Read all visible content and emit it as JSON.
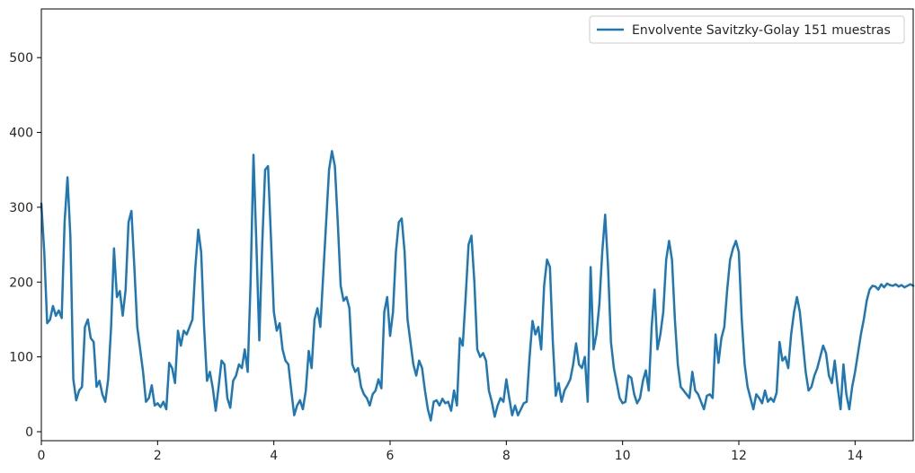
{
  "chart_data": {
    "type": "line",
    "title": "",
    "xlabel": "",
    "ylabel": "",
    "xlim": [
      0,
      15
    ],
    "ylim": [
      -12,
      565
    ],
    "xticks": [
      0,
      2,
      4,
      6,
      8,
      10,
      12,
      14
    ],
    "yticks": [
      0,
      100,
      200,
      300,
      400,
      500
    ],
    "xtick_labels": [
      "0",
      "2",
      "4",
      "6",
      "8",
      "10",
      "12",
      "14"
    ],
    "ytick_labels": [
      "0",
      "100",
      "200",
      "300",
      "400",
      "500"
    ],
    "grid": false,
    "legend": {
      "position": "top-right"
    },
    "series": [
      {
        "name": "Envolvente Savitzky-Golay 151 muestras",
        "color": "#1f77b4",
        "points": [
          [
            0.0,
            305
          ],
          [
            0.05,
            240
          ],
          [
            0.1,
            145
          ],
          [
            0.15,
            150
          ],
          [
            0.2,
            168
          ],
          [
            0.25,
            155
          ],
          [
            0.3,
            162
          ],
          [
            0.35,
            152
          ],
          [
            0.4,
            280
          ],
          [
            0.45,
            340
          ],
          [
            0.5,
            260
          ],
          [
            0.55,
            70
          ],
          [
            0.6,
            42
          ],
          [
            0.65,
            55
          ],
          [
            0.7,
            60
          ],
          [
            0.75,
            140
          ],
          [
            0.8,
            150
          ],
          [
            0.85,
            125
          ],
          [
            0.9,
            120
          ],
          [
            0.95,
            60
          ],
          [
            1.0,
            68
          ],
          [
            1.05,
            50
          ],
          [
            1.1,
            40
          ],
          [
            1.15,
            70
          ],
          [
            1.2,
            140
          ],
          [
            1.25,
            245
          ],
          [
            1.3,
            180
          ],
          [
            1.35,
            188
          ],
          [
            1.4,
            155
          ],
          [
            1.45,
            190
          ],
          [
            1.5,
            280
          ],
          [
            1.55,
            295
          ],
          [
            1.6,
            220
          ],
          [
            1.65,
            140
          ],
          [
            1.7,
            110
          ],
          [
            1.75,
            80
          ],
          [
            1.8,
            40
          ],
          [
            1.85,
            45
          ],
          [
            1.9,
            62
          ],
          [
            1.95,
            35
          ],
          [
            2.0,
            38
          ],
          [
            2.05,
            33
          ],
          [
            2.1,
            40
          ],
          [
            2.15,
            30
          ],
          [
            2.2,
            92
          ],
          [
            2.25,
            85
          ],
          [
            2.3,
            65
          ],
          [
            2.35,
            135
          ],
          [
            2.4,
            115
          ],
          [
            2.45,
            135
          ],
          [
            2.5,
            130
          ],
          [
            2.55,
            140
          ],
          [
            2.6,
            150
          ],
          [
            2.65,
            220
          ],
          [
            2.7,
            270
          ],
          [
            2.75,
            240
          ],
          [
            2.8,
            140
          ],
          [
            2.85,
            68
          ],
          [
            2.9,
            80
          ],
          [
            2.95,
            58
          ],
          [
            3.0,
            28
          ],
          [
            3.05,
            60
          ],
          [
            3.1,
            95
          ],
          [
            3.15,
            90
          ],
          [
            3.2,
            45
          ],
          [
            3.25,
            32
          ],
          [
            3.3,
            68
          ],
          [
            3.35,
            75
          ],
          [
            3.4,
            90
          ],
          [
            3.45,
            85
          ],
          [
            3.5,
            110
          ],
          [
            3.55,
            80
          ],
          [
            3.6,
            200
          ],
          [
            3.65,
            370
          ],
          [
            3.7,
            250
          ],
          [
            3.75,
            122
          ],
          [
            3.8,
            250
          ],
          [
            3.85,
            350
          ],
          [
            3.9,
            355
          ],
          [
            3.95,
            260
          ],
          [
            4.0,
            160
          ],
          [
            4.05,
            135
          ],
          [
            4.1,
            145
          ],
          [
            4.15,
            110
          ],
          [
            4.2,
            95
          ],
          [
            4.25,
            90
          ],
          [
            4.3,
            55
          ],
          [
            4.35,
            22
          ],
          [
            4.4,
            35
          ],
          [
            4.45,
            42
          ],
          [
            4.5,
            30
          ],
          [
            4.55,
            55
          ],
          [
            4.6,
            108
          ],
          [
            4.65,
            85
          ],
          [
            4.7,
            150
          ],
          [
            4.75,
            165
          ],
          [
            4.8,
            140
          ],
          [
            4.85,
            210
          ],
          [
            4.9,
            280
          ],
          [
            4.95,
            350
          ],
          [
            5.0,
            375
          ],
          [
            5.05,
            355
          ],
          [
            5.1,
            280
          ],
          [
            5.15,
            195
          ],
          [
            5.2,
            175
          ],
          [
            5.25,
            180
          ],
          [
            5.3,
            165
          ],
          [
            5.35,
            90
          ],
          [
            5.4,
            80
          ],
          [
            5.45,
            85
          ],
          [
            5.5,
            60
          ],
          [
            5.55,
            50
          ],
          [
            5.6,
            45
          ],
          [
            5.65,
            35
          ],
          [
            5.7,
            50
          ],
          [
            5.75,
            55
          ],
          [
            5.8,
            70
          ],
          [
            5.85,
            58
          ],
          [
            5.9,
            160
          ],
          [
            5.95,
            180
          ],
          [
            6.0,
            128
          ],
          [
            6.05,
            160
          ],
          [
            6.1,
            240
          ],
          [
            6.15,
            280
          ],
          [
            6.2,
            285
          ],
          [
            6.25,
            240
          ],
          [
            6.3,
            150
          ],
          [
            6.35,
            120
          ],
          [
            6.4,
            90
          ],
          [
            6.45,
            75
          ],
          [
            6.5,
            95
          ],
          [
            6.55,
            85
          ],
          [
            6.6,
            55
          ],
          [
            6.65,
            30
          ],
          [
            6.7,
            15
          ],
          [
            6.75,
            40
          ],
          [
            6.8,
            42
          ],
          [
            6.85,
            35
          ],
          [
            6.9,
            44
          ],
          [
            6.95,
            38
          ],
          [
            7.0,
            40
          ],
          [
            7.05,
            28
          ],
          [
            7.1,
            55
          ],
          [
            7.15,
            35
          ],
          [
            7.2,
            125
          ],
          [
            7.25,
            115
          ],
          [
            7.3,
            180
          ],
          [
            7.35,
            250
          ],
          [
            7.4,
            262
          ],
          [
            7.45,
            200
          ],
          [
            7.5,
            110
          ],
          [
            7.55,
            100
          ],
          [
            7.6,
            105
          ],
          [
            7.65,
            95
          ],
          [
            7.7,
            55
          ],
          [
            7.75,
            40
          ],
          [
            7.8,
            20
          ],
          [
            7.85,
            35
          ],
          [
            7.9,
            45
          ],
          [
            7.95,
            40
          ],
          [
            8.0,
            70
          ],
          [
            8.05,
            45
          ],
          [
            8.1,
            22
          ],
          [
            8.15,
            35
          ],
          [
            8.2,
            22
          ],
          [
            8.25,
            30
          ],
          [
            8.3,
            38
          ],
          [
            8.35,
            40
          ],
          [
            8.4,
            100
          ],
          [
            8.45,
            148
          ],
          [
            8.5,
            130
          ],
          [
            8.55,
            140
          ],
          [
            8.6,
            110
          ],
          [
            8.65,
            195
          ],
          [
            8.7,
            230
          ],
          [
            8.75,
            220
          ],
          [
            8.8,
            120
          ],
          [
            8.85,
            48
          ],
          [
            8.9,
            65
          ],
          [
            8.95,
            40
          ],
          [
            9.0,
            55
          ],
          [
            9.05,
            62
          ],
          [
            9.1,
            70
          ],
          [
            9.15,
            90
          ],
          [
            9.2,
            118
          ],
          [
            9.25,
            90
          ],
          [
            9.3,
            85
          ],
          [
            9.35,
            100
          ],
          [
            9.4,
            40
          ],
          [
            9.45,
            220
          ],
          [
            9.5,
            110
          ],
          [
            9.55,
            130
          ],
          [
            9.6,
            170
          ],
          [
            9.65,
            240
          ],
          [
            9.7,
            290
          ],
          [
            9.75,
            220
          ],
          [
            9.8,
            120
          ],
          [
            9.85,
            85
          ],
          [
            9.9,
            65
          ],
          [
            9.95,
            45
          ],
          [
            10.0,
            38
          ],
          [
            10.05,
            40
          ],
          [
            10.1,
            75
          ],
          [
            10.15,
            72
          ],
          [
            10.2,
            50
          ],
          [
            10.25,
            38
          ],
          [
            10.3,
            45
          ],
          [
            10.35,
            68
          ],
          [
            10.4,
            82
          ],
          [
            10.45,
            55
          ],
          [
            10.5,
            140
          ],
          [
            10.55,
            190
          ],
          [
            10.6,
            110
          ],
          [
            10.65,
            130
          ],
          [
            10.7,
            160
          ],
          [
            10.75,
            230
          ],
          [
            10.8,
            255
          ],
          [
            10.85,
            230
          ],
          [
            10.9,
            150
          ],
          [
            10.95,
            90
          ],
          [
            11.0,
            60
          ],
          [
            11.05,
            55
          ],
          [
            11.1,
            50
          ],
          [
            11.15,
            45
          ],
          [
            11.2,
            80
          ],
          [
            11.25,
            55
          ],
          [
            11.3,
            50
          ],
          [
            11.35,
            40
          ],
          [
            11.4,
            30
          ],
          [
            11.45,
            48
          ],
          [
            11.5,
            50
          ],
          [
            11.55,
            45
          ],
          [
            11.6,
            130
          ],
          [
            11.65,
            92
          ],
          [
            11.7,
            125
          ],
          [
            11.75,
            140
          ],
          [
            11.8,
            190
          ],
          [
            11.85,
            230
          ],
          [
            11.9,
            245
          ],
          [
            11.95,
            255
          ],
          [
            12.0,
            240
          ],
          [
            12.05,
            150
          ],
          [
            12.1,
            90
          ],
          [
            12.15,
            60
          ],
          [
            12.2,
            45
          ],
          [
            12.25,
            30
          ],
          [
            12.3,
            50
          ],
          [
            12.35,
            45
          ],
          [
            12.4,
            38
          ],
          [
            12.45,
            55
          ],
          [
            12.5,
            40
          ],
          [
            12.55,
            45
          ],
          [
            12.6,
            40
          ],
          [
            12.65,
            52
          ],
          [
            12.7,
            120
          ],
          [
            12.75,
            95
          ],
          [
            12.8,
            100
          ],
          [
            12.85,
            85
          ],
          [
            12.9,
            130
          ],
          [
            12.95,
            160
          ],
          [
            13.0,
            180
          ],
          [
            13.05,
            160
          ],
          [
            13.1,
            120
          ],
          [
            13.15,
            80
          ],
          [
            13.2,
            55
          ],
          [
            13.25,
            60
          ],
          [
            13.3,
            75
          ],
          [
            13.35,
            85
          ],
          [
            13.4,
            100
          ],
          [
            13.45,
            115
          ],
          [
            13.5,
            105
          ],
          [
            13.55,
            75
          ],
          [
            13.6,
            65
          ],
          [
            13.65,
            95
          ],
          [
            13.7,
            60
          ],
          [
            13.75,
            30
          ],
          [
            13.8,
            90
          ],
          [
            13.85,
            50
          ],
          [
            13.9,
            30
          ],
          [
            13.95,
            60
          ],
          [
            14.0,
            80
          ],
          [
            14.05,
            105
          ],
          [
            14.1,
            130
          ],
          [
            14.15,
            150
          ],
          [
            14.2,
            175
          ],
          [
            14.25,
            190
          ],
          [
            14.3,
            195
          ],
          [
            14.35,
            194
          ],
          [
            14.4,
            190
          ],
          [
            14.45,
            197
          ],
          [
            14.5,
            193
          ],
          [
            14.55,
            198
          ],
          [
            14.6,
            196
          ],
          [
            14.65,
            195
          ],
          [
            14.7,
            197
          ],
          [
            14.75,
            194
          ],
          [
            14.8,
            196
          ],
          [
            14.85,
            193
          ],
          [
            14.9,
            195
          ],
          [
            14.95,
            197
          ],
          [
            15.0,
            195
          ]
        ]
      }
    ]
  }
}
